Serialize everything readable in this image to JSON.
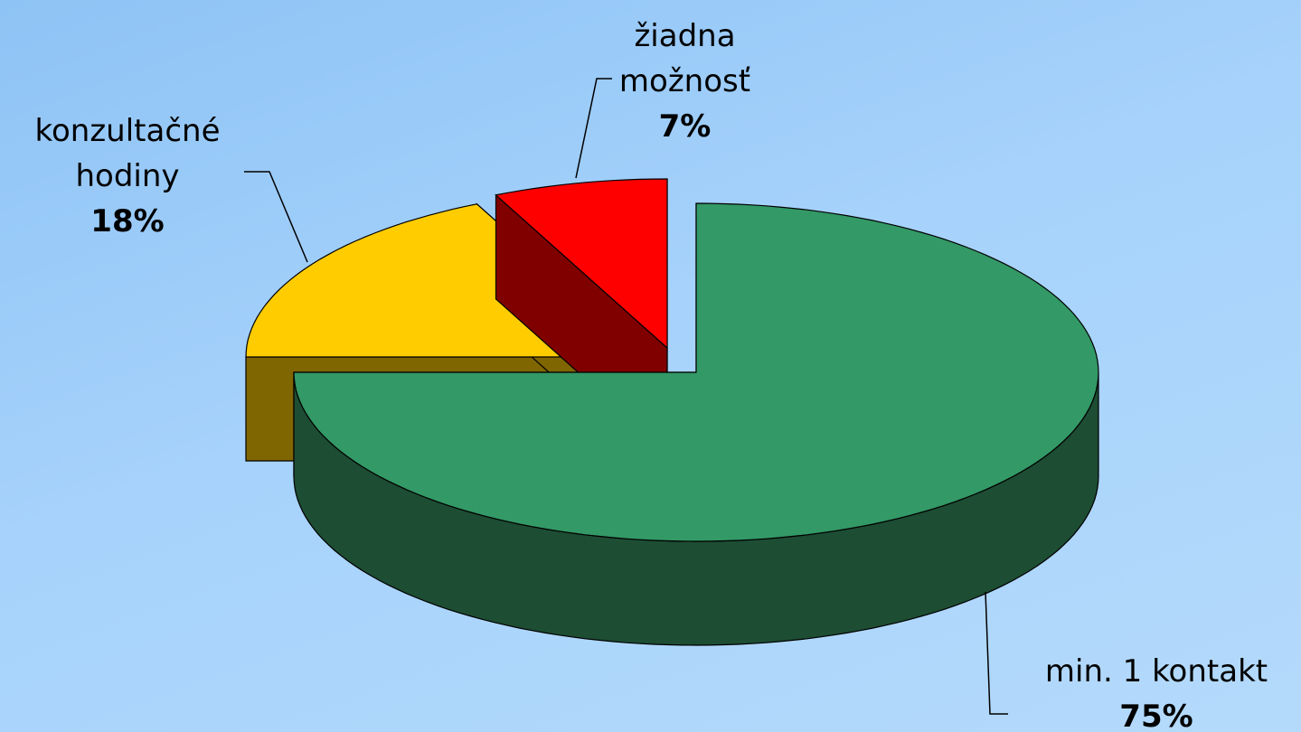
{
  "chart_data": {
    "type": "pie",
    "categories": [
      "min. 1 kontakt",
      "konzultačné hodiny",
      "žiadna možnosť"
    ],
    "values": [
      75,
      18,
      7
    ],
    "value_labels": [
      "75%",
      "18%",
      "7%"
    ],
    "colors": [
      "#339966",
      "#ffcc00",
      "#ff0000"
    ],
    "side_colors": [
      "#1d4d33",
      "#806600",
      "#800000"
    ]
  }
}
